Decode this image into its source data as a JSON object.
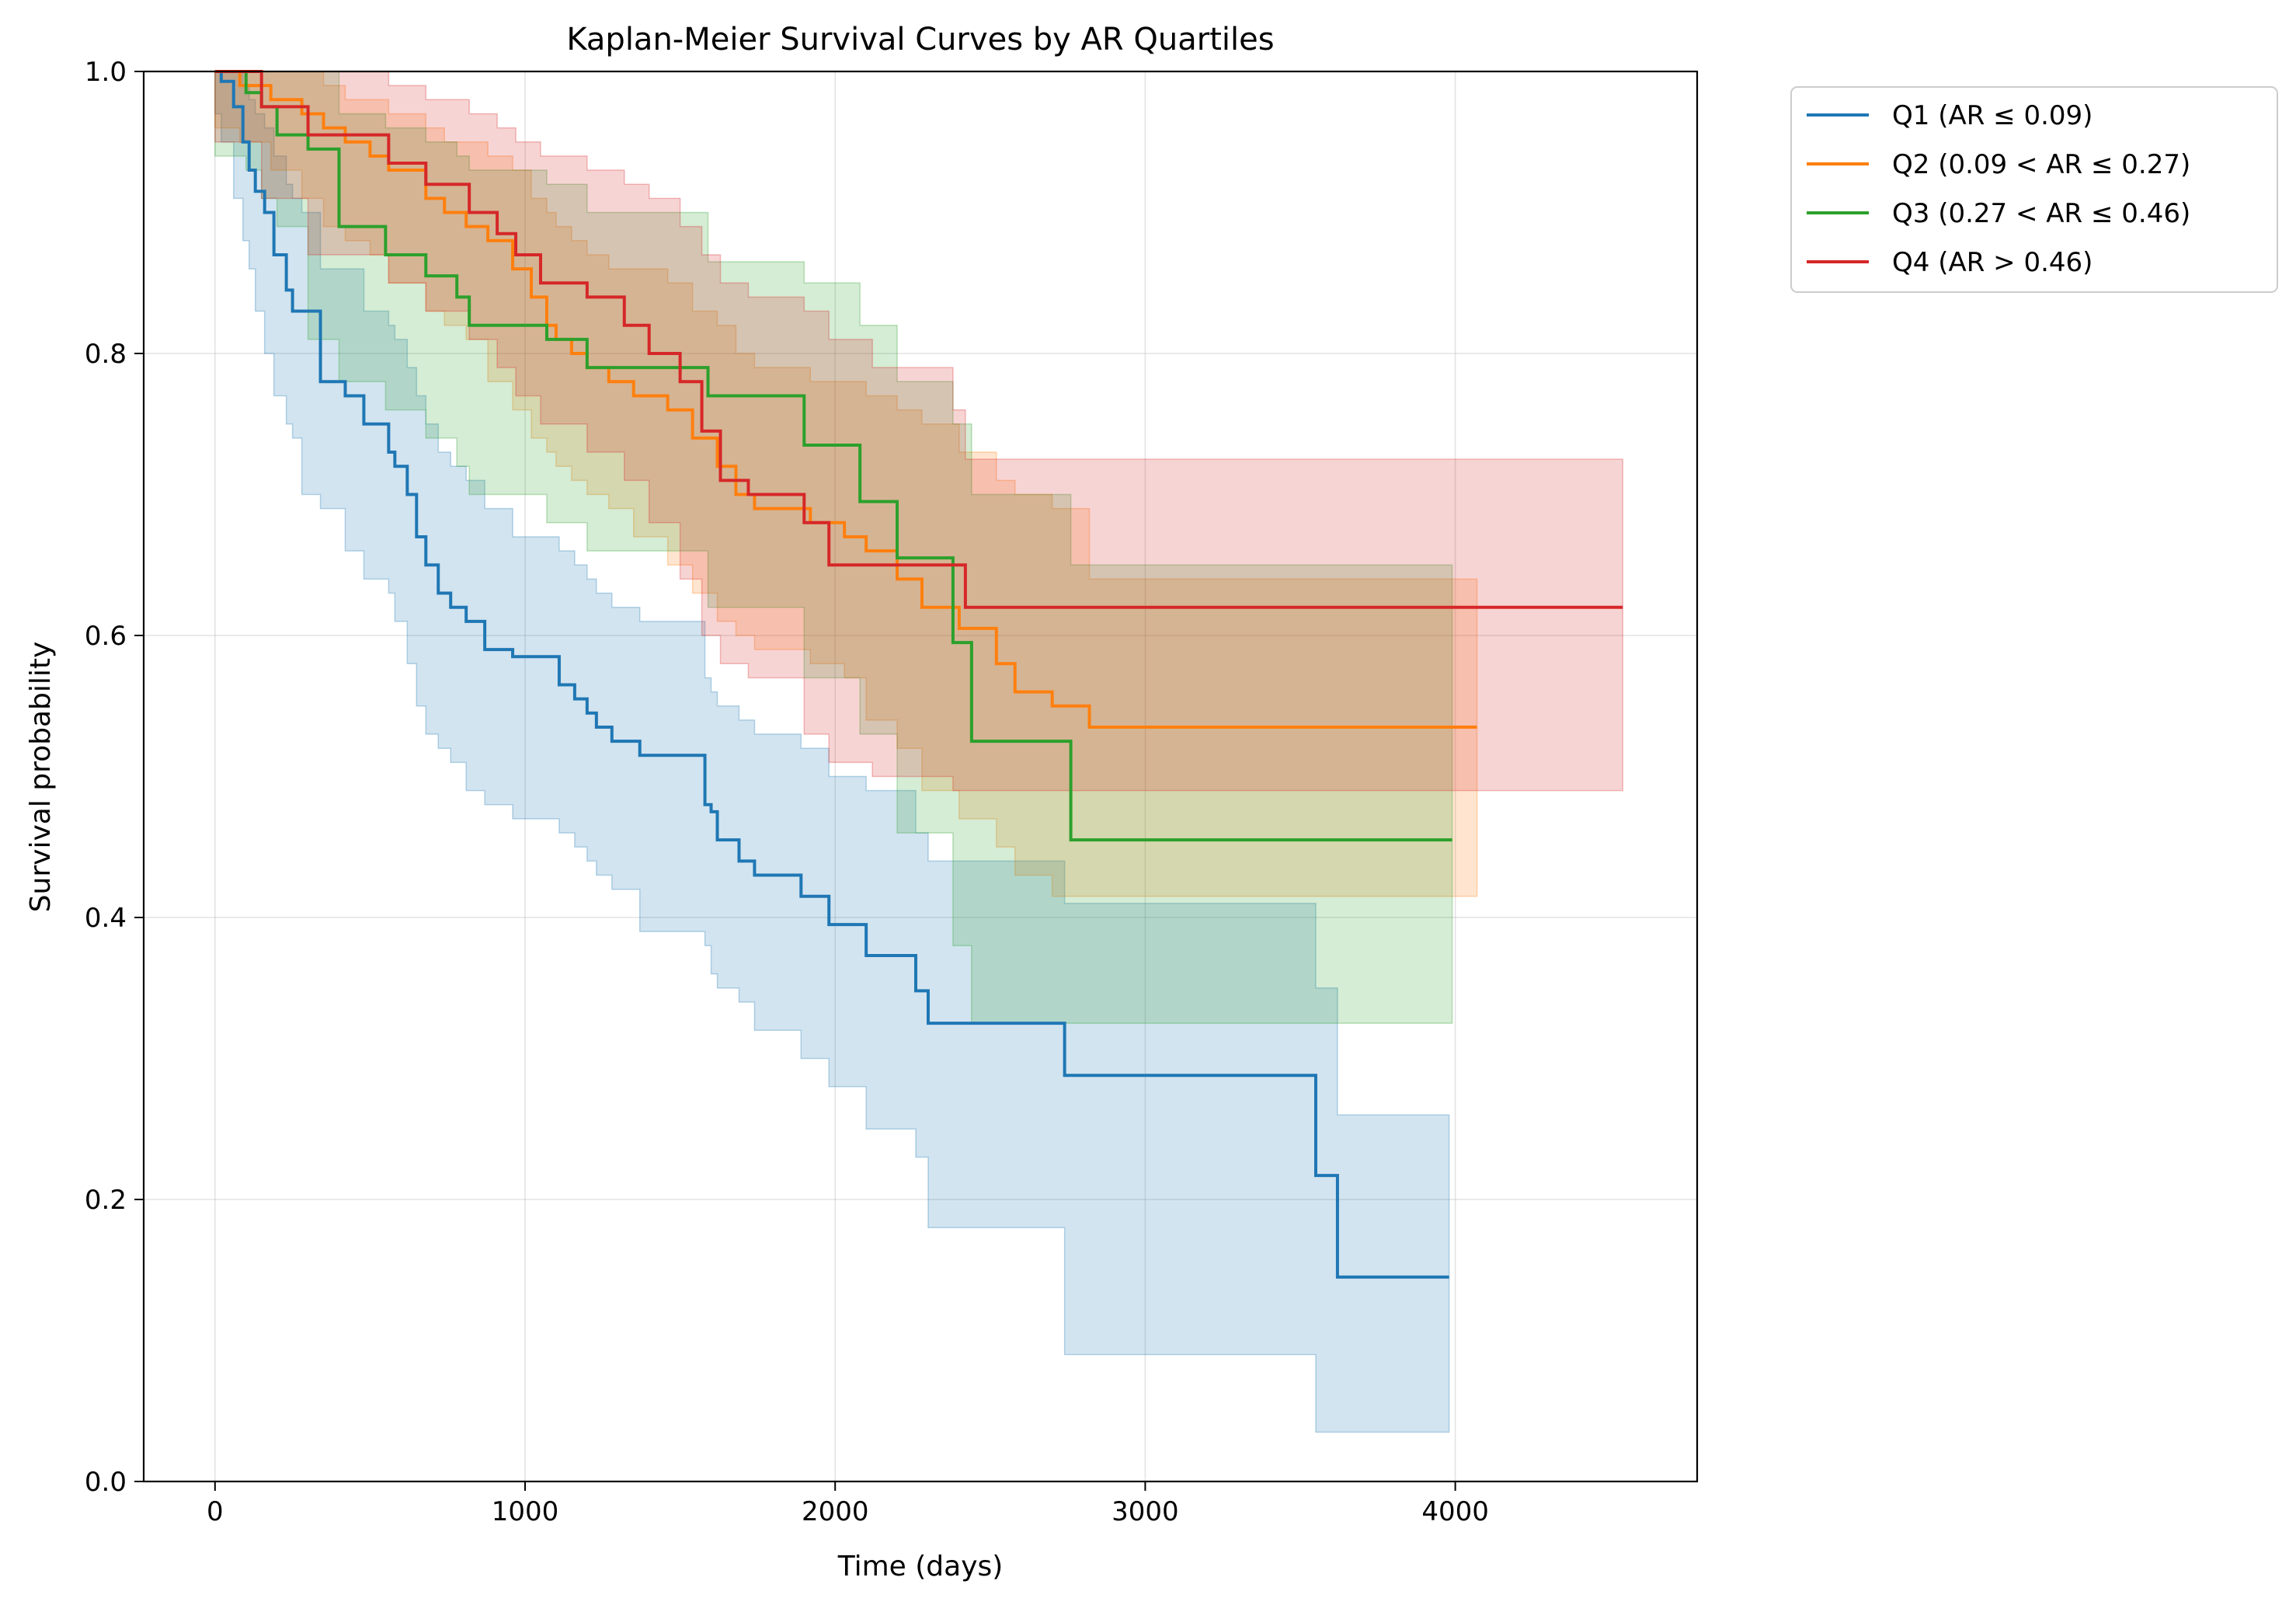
{
  "chart_data": {
    "type": "line",
    "title": "Kaplan-Meier Survival Curves by AR Quartiles",
    "xlabel": "Time (days)",
    "ylabel": "Survival probability",
    "xlim": [
      -230,
      4780
    ],
    "ylim": [
      0.0,
      1.0
    ],
    "x_ticks": [
      0,
      1000,
      2000,
      3000,
      4000
    ],
    "y_ticks": [
      0.0,
      0.2,
      0.4,
      0.6,
      0.8,
      1.0
    ],
    "x_tick_labels": [
      "0",
      "1000",
      "2000",
      "3000",
      "4000"
    ],
    "y_tick_labels": [
      "0.0",
      "0.2",
      "0.4",
      "0.6",
      "0.8",
      "1.0"
    ],
    "grid": true,
    "legend_placement": "outside-top-right",
    "series": [
      {
        "name": "Q1 (AR ≤ 0.09)",
        "color": "#1f77b4",
        "x": [
          0,
          20,
          60,
          90,
          110,
          130,
          160,
          190,
          230,
          250,
          280,
          340,
          420,
          480,
          560,
          580,
          620,
          650,
          680,
          720,
          760,
          810,
          870,
          960,
          1110,
          1160,
          1200,
          1230,
          1280,
          1370,
          1580,
          1600,
          1620,
          1690,
          1740,
          1890,
          1980,
          2100,
          2260,
          2300,
          2740,
          3550,
          3620,
          3980
        ],
        "y": [
          1.0,
          0.993,
          0.975,
          0.95,
          0.93,
          0.915,
          0.9,
          0.87,
          0.845,
          0.83,
          0.83,
          0.78,
          0.77,
          0.75,
          0.73,
          0.72,
          0.7,
          0.67,
          0.65,
          0.63,
          0.62,
          0.61,
          0.59,
          0.585,
          0.565,
          0.555,
          0.545,
          0.535,
          0.525,
          0.515,
          0.48,
          0.475,
          0.455,
          0.44,
          0.43,
          0.415,
          0.395,
          0.373,
          0.348,
          0.325,
          0.288,
          0.217,
          0.145,
          0.145
        ],
        "ci_upper": [
          1.0,
          1.0,
          1.0,
          0.99,
          0.98,
          0.97,
          0.96,
          0.94,
          0.92,
          0.91,
          0.9,
          0.86,
          0.86,
          0.83,
          0.82,
          0.81,
          0.79,
          0.77,
          0.75,
          0.73,
          0.72,
          0.71,
          0.69,
          0.67,
          0.66,
          0.65,
          0.64,
          0.63,
          0.62,
          0.61,
          0.57,
          0.56,
          0.55,
          0.54,
          0.53,
          0.52,
          0.5,
          0.49,
          0.46,
          0.44,
          0.41,
          0.35,
          0.26,
          0.26
        ],
        "ci_lower": [
          1.0,
          0.97,
          0.95,
          0.91,
          0.88,
          0.86,
          0.83,
          0.8,
          0.77,
          0.75,
          0.74,
          0.7,
          0.69,
          0.66,
          0.64,
          0.63,
          0.61,
          0.58,
          0.55,
          0.53,
          0.52,
          0.51,
          0.49,
          0.48,
          0.47,
          0.46,
          0.45,
          0.44,
          0.43,
          0.42,
          0.39,
          0.38,
          0.36,
          0.35,
          0.34,
          0.32,
          0.3,
          0.28,
          0.25,
          0.23,
          0.18,
          0.09,
          0.035,
          0.035
        ]
      },
      {
        "name": "Q2 (0.09 < AR ≤ 0.27)",
        "color": "#ff7f0e",
        "x": [
          0,
          80,
          180,
          280,
          350,
          420,
          500,
          560,
          680,
          740,
          810,
          880,
          960,
          1020,
          1070,
          1100,
          1150,
          1200,
          1270,
          1350,
          1460,
          1540,
          1620,
          1680,
          1740,
          1920,
          2030,
          2100,
          2200,
          2280,
          2400,
          2520,
          2580,
          2700,
          2820,
          4070
        ],
        "y": [
          1.0,
          0.99,
          0.98,
          0.97,
          0.96,
          0.95,
          0.94,
          0.93,
          0.91,
          0.9,
          0.89,
          0.88,
          0.86,
          0.84,
          0.82,
          0.81,
          0.8,
          0.79,
          0.78,
          0.77,
          0.76,
          0.74,
          0.72,
          0.7,
          0.69,
          0.68,
          0.67,
          0.66,
          0.64,
          0.62,
          0.605,
          0.58,
          0.56,
          0.55,
          0.535,
          0.535
        ],
        "ci_upper": [
          1.0,
          1.0,
          1.0,
          1.0,
          0.99,
          0.98,
          0.98,
          0.97,
          0.96,
          0.95,
          0.95,
          0.94,
          0.93,
          0.91,
          0.9,
          0.89,
          0.88,
          0.87,
          0.86,
          0.86,
          0.85,
          0.83,
          0.82,
          0.8,
          0.79,
          0.78,
          0.78,
          0.77,
          0.76,
          0.75,
          0.73,
          0.71,
          0.7,
          0.69,
          0.64,
          0.64
        ],
        "ci_lower": [
          1.0,
          0.96,
          0.95,
          0.93,
          0.91,
          0.89,
          0.88,
          0.87,
          0.85,
          0.83,
          0.82,
          0.81,
          0.78,
          0.76,
          0.74,
          0.73,
          0.72,
          0.71,
          0.7,
          0.69,
          0.67,
          0.65,
          0.63,
          0.61,
          0.6,
          0.59,
          0.58,
          0.57,
          0.54,
          0.52,
          0.49,
          0.47,
          0.45,
          0.43,
          0.415,
          0.415
        ]
      },
      {
        "name": "Q3 (0.27 < AR ≤ 0.46)",
        "color": "#2ca02c",
        "x": [
          0,
          100,
          150,
          200,
          300,
          400,
          550,
          680,
          780,
          820,
          1070,
          1200,
          1590,
          1900,
          2080,
          2200,
          2380,
          2440,
          2760,
          3990
        ],
        "y": [
          1.0,
          0.985,
          0.975,
          0.955,
          0.945,
          0.89,
          0.87,
          0.855,
          0.84,
          0.82,
          0.81,
          0.79,
          0.77,
          0.735,
          0.695,
          0.655,
          0.595,
          0.525,
          0.455,
          0.455
        ],
        "ci_upper": [
          1.0,
          1.0,
          1.0,
          1.0,
          1.0,
          0.97,
          0.96,
          0.95,
          0.94,
          0.93,
          0.92,
          0.9,
          0.865,
          0.85,
          0.82,
          0.78,
          0.75,
          0.7,
          0.65,
          0.65
        ],
        "ci_lower": [
          1.0,
          0.94,
          0.93,
          0.91,
          0.89,
          0.81,
          0.78,
          0.76,
          0.74,
          0.72,
          0.7,
          0.68,
          0.66,
          0.62,
          0.57,
          0.53,
          0.46,
          0.38,
          0.325,
          0.325
        ]
      },
      {
        "name": "Q4 (AR > 0.46)",
        "color": "#d62728",
        "x": [
          0,
          150,
          300,
          560,
          680,
          820,
          910,
          970,
          1050,
          1200,
          1320,
          1400,
          1500,
          1570,
          1630,
          1720,
          1900,
          1980,
          2120,
          2380,
          2420,
          4540
        ],
        "y": [
          1.0,
          0.975,
          0.955,
          0.935,
          0.92,
          0.9,
          0.885,
          0.87,
          0.85,
          0.84,
          0.82,
          0.8,
          0.78,
          0.745,
          0.71,
          0.7,
          0.68,
          0.65,
          0.65,
          0.65,
          0.62,
          0.62
        ],
        "ci_upper": [
          1.0,
          1.0,
          1.0,
          0.99,
          0.98,
          0.97,
          0.96,
          0.95,
          0.94,
          0.93,
          0.92,
          0.91,
          0.89,
          0.87,
          0.85,
          0.84,
          0.83,
          0.81,
          0.79,
          0.76,
          0.725,
          0.725
        ],
        "ci_lower": [
          1.0,
          0.95,
          0.91,
          0.87,
          0.85,
          0.83,
          0.81,
          0.79,
          0.77,
          0.75,
          0.73,
          0.71,
          0.68,
          0.64,
          0.6,
          0.58,
          0.57,
          0.53,
          0.51,
          0.5,
          0.49,
          0.49
        ]
      }
    ]
  }
}
